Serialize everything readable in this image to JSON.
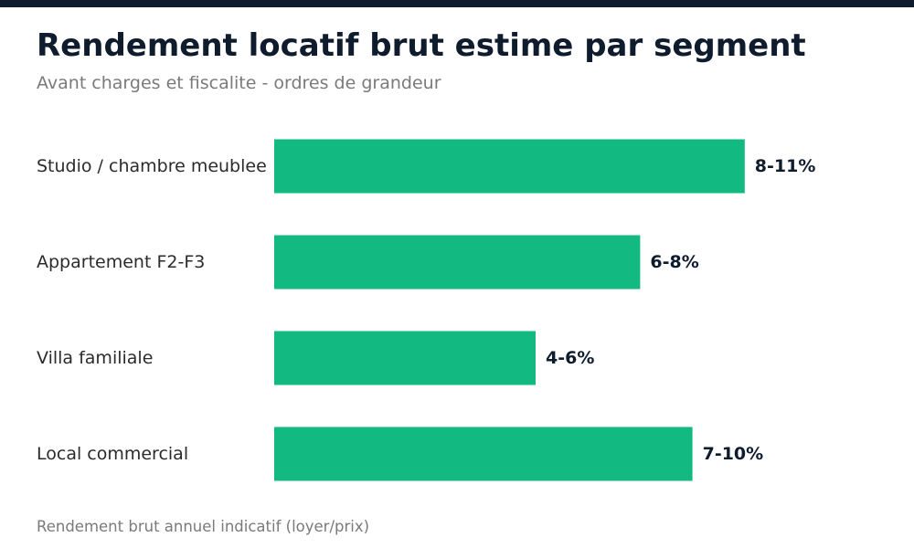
{
  "colors": {
    "accent_bar": "#0f1c2e",
    "bar_fill": "#12b981",
    "title": "#0f1c2e",
    "subtitle": "#7a7a7a",
    "category_text": "#2b2b2b",
    "value_text": "#0f1c2e",
    "footnote": "#7a7a7a"
  },
  "chart_data": {
    "type": "bar",
    "orientation": "horizontal",
    "title": "Rendement locatif brut estime par segment",
    "subtitle": "Avant charges et fiscalite - ordres de grandeur",
    "categories": [
      "Studio / chambre meublee",
      "Appartement F2-F3",
      "Villa familiale",
      "Local commercial"
    ],
    "values": [
      9,
      7,
      5,
      8
    ],
    "value_labels": [
      "8-11%",
      "6-8%",
      "4-6%",
      "7-10%"
    ],
    "xlim": [
      0,
      11.5
    ],
    "grid": false,
    "legend": "none",
    "note": "Rendement brut annuel indicatif (loyer/prix)"
  }
}
